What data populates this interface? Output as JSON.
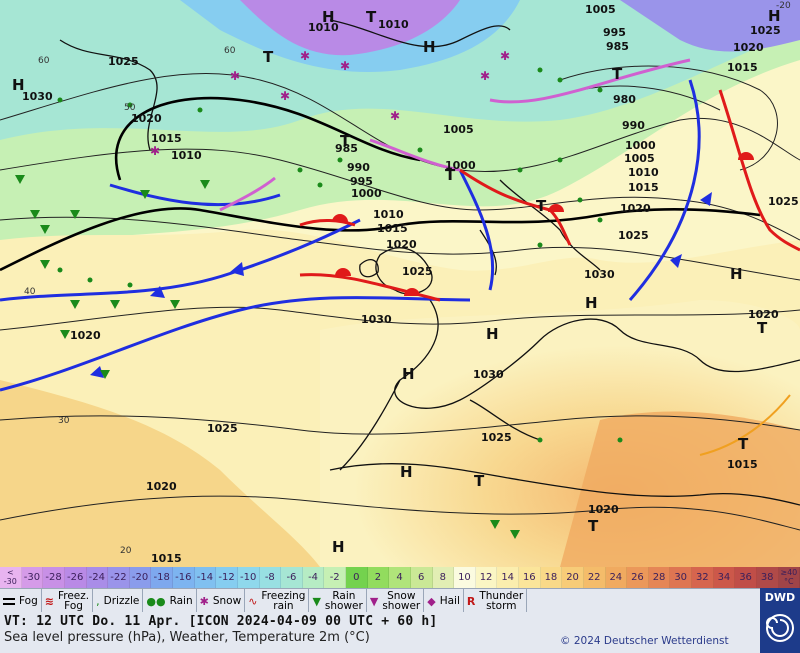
{
  "map": {
    "pressure_labels": [
      "1010",
      "1010",
      "1005",
      "995",
      "985",
      "1025",
      "1030",
      "1020",
      "1015",
      "1010",
      "1005",
      "980",
      "990",
      "985",
      "990",
      "995",
      "1000",
      "1000",
      "1000",
      "1005",
      "1010",
      "1015",
      "1020",
      "1025",
      "1010",
      "1015",
      "1020",
      "1025",
      "1030",
      "1030",
      "1025",
      "1020",
      "1015",
      "1020",
      "1025",
      "1030",
      "1025",
      "1020",
      "1015",
      "1020",
      "1015",
      "1020",
      "1025"
    ],
    "high_label": "H",
    "low_label": "T",
    "temp_labels": [
      "60",
      "60",
      "50",
      "40",
      "30",
      "20",
      "-20"
    ]
  },
  "scale": {
    "values": [
      "<\n-30",
      "-30",
      "-28",
      "-26",
      "-24",
      "-22",
      "-20",
      "-18",
      "-16",
      "-14",
      "-12",
      "-10",
      "-8",
      "-6",
      "-4",
      "-2",
      "0",
      "2",
      "4",
      "6",
      "8",
      "10",
      "12",
      "14",
      "16",
      "18",
      "20",
      "22",
      "24",
      "26",
      "28",
      "30",
      "32",
      "34",
      "36",
      "38",
      "≥40\n°C"
    ],
    "colors": [
      "#e8b4f0",
      "#d59be8",
      "#c890e6",
      "#b98ae6",
      "#a98de8",
      "#9a94ea",
      "#8a9cec",
      "#7ea8ee",
      "#7db4f0",
      "#80c0f0",
      "#86cdf0",
      "#8fd8ec",
      "#98e0e2",
      "#a6e6d4",
      "#b6ecc4",
      "#c6f0b4",
      "#74d24e",
      "#92dc5e",
      "#b0e47a",
      "#cae896",
      "#e2eeb4",
      "#fbfbe0",
      "#fbf6c4",
      "#fbeeae",
      "#fbe59a",
      "#f9d988",
      "#f7cc78",
      "#f4bc6a",
      "#f0aa60",
      "#eb985a",
      "#e58656",
      "#de7552",
      "#d6654e",
      "#cc584a",
      "#c04e48",
      "#b04a48",
      "#a04448"
    ]
  },
  "legend": {
    "items": [
      {
        "icon": "fog-icon",
        "label": "Fog"
      },
      {
        "icon": "freezing-fog-icon",
        "label": "Freez.\nFog"
      },
      {
        "icon": "drizzle-icon",
        "label": "Drizzle"
      },
      {
        "icon": "rain-icon",
        "label": "Rain"
      },
      {
        "icon": "snow-icon",
        "label": "Snow"
      },
      {
        "icon": "freezing-rain-icon",
        "label": "Freezing\nrain"
      },
      {
        "icon": "rain-shower-icon",
        "label": "Rain\nshower"
      },
      {
        "icon": "snow-shower-icon",
        "label": "Snow\nshower"
      },
      {
        "icon": "hail-icon",
        "label": "Hail"
      },
      {
        "icon": "thunderstorm-icon",
        "label": "Thunder\nstorm"
      }
    ]
  },
  "info": {
    "valid_time": "VT: 12 UTC Do.  11 Apr. [ICON 2024-04-09  00 UTC + 60 h]",
    "subtitle": "Sea level pressure (hPa), Weather, Temperature 2m (°C)",
    "copyright": "© 2024 Deutscher Wetterdienst",
    "logo": "DWD"
  }
}
